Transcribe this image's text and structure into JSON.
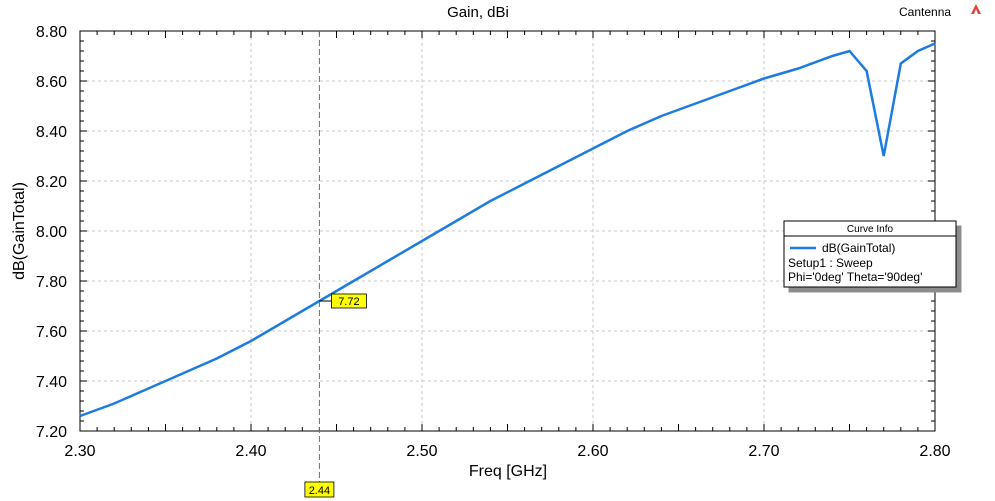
{
  "header": {
    "project_name": "Cantenna"
  },
  "chart_data": {
    "type": "line",
    "title": "Gain, dBi",
    "xlabel": "Freq [GHz]",
    "ylabel": "dB(GainTotal)",
    "xlim": [
      2.3,
      2.8
    ],
    "ylim": [
      7.2,
      8.8
    ],
    "xticks": [
      "2.30",
      "2.40",
      "2.50",
      "2.60",
      "2.70",
      "2.80"
    ],
    "yticks": [
      "7.20",
      "7.40",
      "7.60",
      "7.80",
      "8.00",
      "8.20",
      "8.40",
      "8.60",
      "8.80"
    ],
    "grid": true,
    "legend_position": "right",
    "series": [
      {
        "name": "dB(GainTotal)",
        "color": "#1E7BE0",
        "x": [
          2.3,
          2.32,
          2.34,
          2.36,
          2.38,
          2.4,
          2.42,
          2.44,
          2.46,
          2.48,
          2.5,
          2.52,
          2.54,
          2.56,
          2.58,
          2.6,
          2.62,
          2.64,
          2.66,
          2.68,
          2.7,
          2.72,
          2.74,
          2.75,
          2.76,
          2.77,
          2.78,
          2.79,
          2.8
        ],
        "y": [
          7.26,
          7.31,
          7.37,
          7.43,
          7.49,
          7.56,
          7.64,
          7.72,
          7.8,
          7.88,
          7.96,
          8.04,
          8.12,
          8.19,
          8.26,
          8.33,
          8.4,
          8.46,
          8.51,
          8.56,
          8.61,
          8.65,
          8.7,
          8.72,
          8.64,
          8.3,
          8.67,
          8.72,
          8.75
        ]
      }
    ],
    "legend": {
      "heading": "Curve Info",
      "entry": "dB(GainTotal)",
      "lines": [
        "Setup1 : Sweep",
        "Phi='0deg' Theta='90deg'"
      ]
    },
    "marker": {
      "x": 2.44,
      "y": 7.72,
      "x_label": "2.44",
      "value_label": "7.72"
    }
  },
  "colors": {
    "curve": "#1E7BE0",
    "grid": "#C8C8C8",
    "marker_fill": "#FFFF00",
    "marker_line": "#6E6E6E"
  }
}
